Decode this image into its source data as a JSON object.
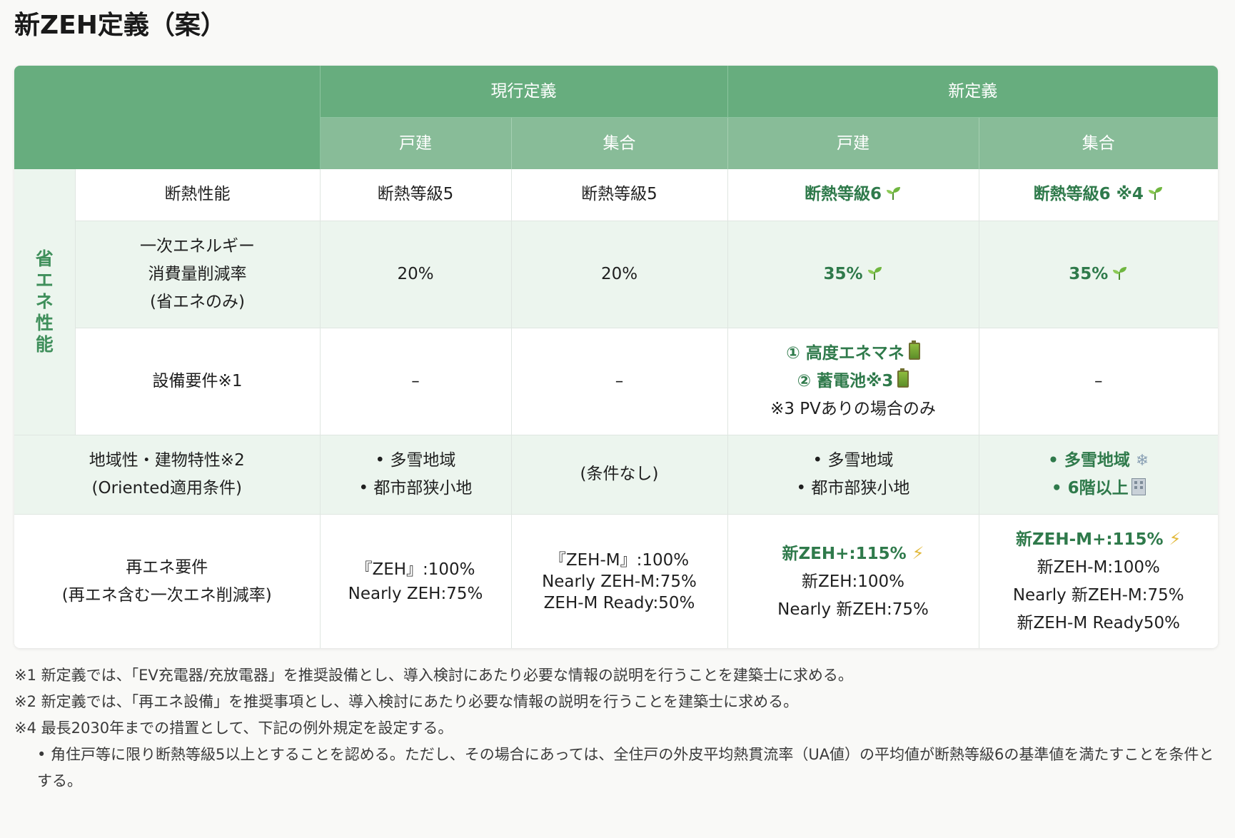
{
  "page": {
    "title": "新ZEH定義（案）"
  },
  "table": {
    "header": {
      "group_current": "現行定義",
      "group_new": "新定義",
      "cols": [
        "戸建",
        "集合",
        "戸建",
        "集合"
      ]
    },
    "category_label": "省エネ性能",
    "rows": {
      "insulation": {
        "label": "断熱性能",
        "cur_house": "断熱等級5",
        "cur_apt": "断熱等級5",
        "new_house": "断熱等級6",
        "new_apt": "断熱等級6 ※4"
      },
      "energy": {
        "label_lines": [
          "一次エネルギー",
          "消費量削減率",
          "(省エネのみ)"
        ],
        "cur_house": "20%",
        "cur_apt": "20%",
        "new_house": "35%",
        "new_apt": "35%"
      },
      "equipment": {
        "label": "設備要件※1",
        "cur_house": "–",
        "cur_apt": "–",
        "new_house_lines": [
          "① 高度エネマネ",
          "② 蓄電池※3",
          "※3 PVありの場合のみ"
        ],
        "new_apt": "–"
      },
      "region": {
        "label_lines": [
          "地域性・建物特性※2",
          "(Oriented適用条件)"
        ],
        "cur_house_lines": [
          "• 多雪地域",
          "• 都市部狭小地"
        ],
        "cur_apt": "(条件なし)",
        "new_house_lines": [
          "• 多雪地域",
          "• 都市部狭小地"
        ],
        "new_apt_lines": [
          "• 多雪地域",
          "• 6階以上"
        ]
      },
      "renewable": {
        "label_lines": [
          "再エネ要件",
          "(再エネ含む一次エネ削減率)"
        ],
        "cur_house_lines": [
          "『ZEH』:100%",
          "Nearly ZEH:75%"
        ],
        "cur_apt_lines": [
          "『ZEH-M』:100%",
          "Nearly ZEH-M:75%",
          "ZEH-M Ready:50%"
        ],
        "new_house_lines": [
          "新ZEH+:115%",
          "新ZEH:100%",
          "Nearly 新ZEH:75%"
        ],
        "new_apt_lines": [
          "新ZEH-M+:115%",
          "新ZEH-M:100%",
          "Nearly 新ZEH-M:75%",
          "新ZEH-M Ready50%"
        ]
      }
    }
  },
  "notes": [
    "※1 新定義では、「EV充電器/充放電器」を推奨設備とし、導入検討にあたり必要な情報の説明を行うことを建築士に求める。",
    "※2 新定義では、「再エネ設備」を推奨事項とし、導入検討にあたり必要な情報の説明を行うことを建築士に求める。",
    "※4 最長2030年までの措置として、下記の例外規定を設定する。",
    "• 角住戸等に限り断熱等級5以上とすることを認める。ただし、その場合にあっては、全住戸の外皮平均熱貫流率（UA値）の平均値が断熱等級6の基準値を満たすことを条件とする。"
  ],
  "icons": {
    "sprout": "sprout-icon",
    "battery": "battery-icon",
    "bolt": "lightning-icon",
    "snow": "snowflake-icon",
    "building": "building-icon"
  },
  "colors": {
    "header_dark": "#67ad7e",
    "header_light": "#88bc98",
    "accent_text": "#2f7a4b",
    "row_tint": "#ecf5ee"
  }
}
